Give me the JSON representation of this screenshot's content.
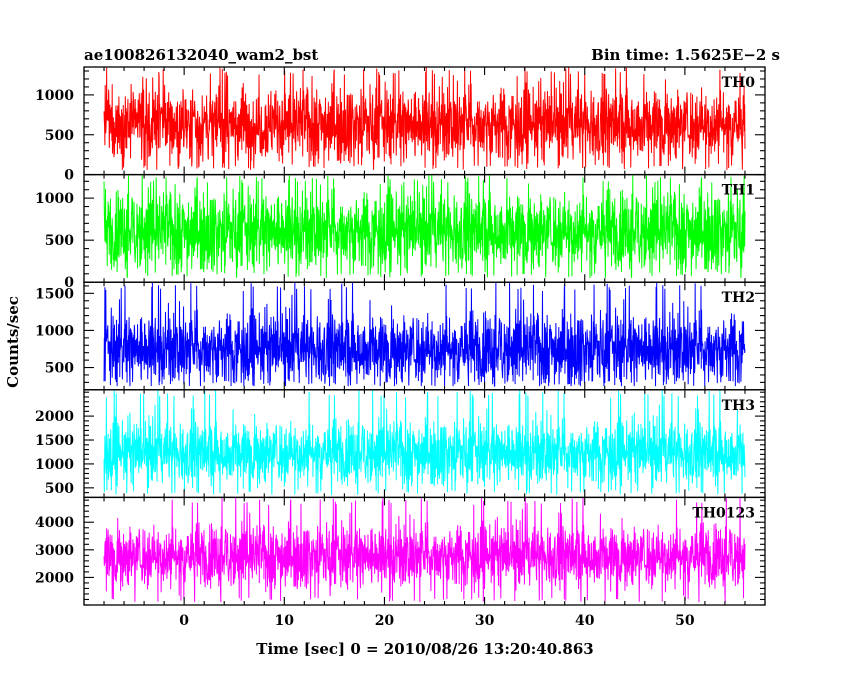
{
  "header": {
    "title": "ae100826132040_wam2_bst",
    "bin_time": "Bin time: 1.5625E−2 s"
  },
  "axes": {
    "ylabel": "Counts/sec",
    "xlabel": "Time [sec] 0 = 2010/08/26 13:20:40.863"
  },
  "chart_data": {
    "type": "line",
    "title": "ae100826132040_wam2_bst",
    "xlabel": "Time [sec] 0 = 2010/08/26 13:20:40.863",
    "ylabel": "Counts/sec",
    "xlim": [
      -10,
      58
    ],
    "x_ticks": [
      0,
      10,
      20,
      30,
      40,
      50
    ],
    "x_tick_labels": [
      "0",
      "10",
      "20",
      "30",
      "40",
      "50"
    ],
    "data_x_range": [
      -8,
      56
    ],
    "bin_time": 0.015625,
    "panels": [
      {
        "name": "TH0",
        "color": "#ff0000",
        "ylim": [
          0,
          1350
        ],
        "y_ticks": [
          0,
          500,
          1000
        ],
        "y_tick_labels": [
          "0",
          "500",
          "1000"
        ],
        "mean": 640,
        "spread": 230,
        "min": 60,
        "max": 1350
      },
      {
        "name": "TH1",
        "color": "#00ff00",
        "ylim": [
          0,
          1280
        ],
        "y_ticks": [
          0,
          500,
          1000
        ],
        "y_tick_labels": [
          "0",
          "500",
          "1000"
        ],
        "mean": 620,
        "spread": 230,
        "min": 50,
        "max": 1280
      },
      {
        "name": "TH2",
        "color": "#0000ff",
        "ylim": [
          200,
          1650
        ],
        "y_ticks": [
          500,
          1000,
          1500
        ],
        "y_tick_labels": [
          "500",
          "1000",
          "1500"
        ],
        "mean": 760,
        "spread": 240,
        "min": 250,
        "max": 1650
      },
      {
        "name": "TH3",
        "color": "#00ffff",
        "ylim": [
          300,
          2550
        ],
        "y_ticks": [
          500,
          1000,
          1500,
          2000
        ],
        "y_tick_labels": [
          "500",
          "1000",
          "1500",
          "2000"
        ],
        "mean": 1250,
        "spread": 330,
        "min": 350,
        "max": 2550
      },
      {
        "name": "TH0123",
        "color": "#ff00ff",
        "ylim": [
          1000,
          4900
        ],
        "y_ticks": [
          2000,
          3000,
          4000
        ],
        "y_tick_labels": [
          "2000",
          "3000",
          "4000"
        ],
        "mean": 2800,
        "spread": 560,
        "min": 1100,
        "max": 4900
      }
    ]
  }
}
